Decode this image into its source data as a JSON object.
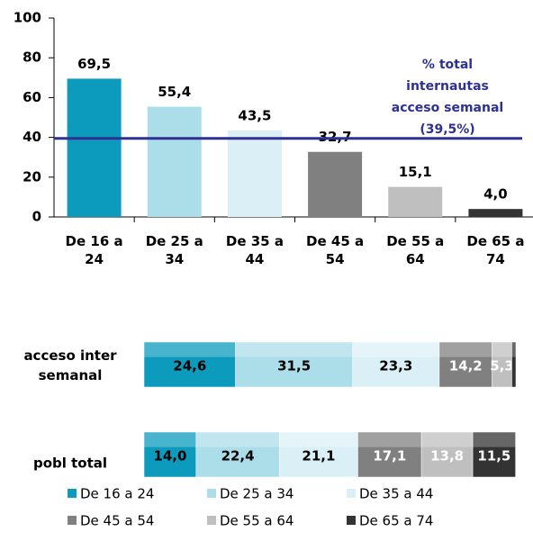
{
  "chart_data": [
    {
      "type": "bar",
      "categories": [
        "De 16 a 24",
        "De 25 a 34",
        "De 35 a 44",
        "De 45 a 54",
        "De 55 a 64",
        "De 65 a 74"
      ],
      "values": [
        69.5,
        55.4,
        43.5,
        32.7,
        15.1,
        4.0
      ],
      "value_labels": [
        "69,5",
        "55,4",
        "43,5",
        "32,7",
        "15,1",
        "4,0"
      ],
      "colors": [
        "#0d9bbd",
        "#acdeea",
        "#dbf0f6",
        "#808080",
        "#bfbfbf",
        "#333333"
      ],
      "ylim": [
        0,
        100
      ],
      "yticks": [
        0,
        20,
        40,
        60,
        80,
        100
      ],
      "reference_line": 39.5,
      "reference_color": "#2e3192",
      "annotation": [
        "% total",
        "internautas",
        "acceso semanal",
        "(39,5%)"
      ]
    },
    {
      "type": "stacked_barh",
      "categories": [
        "acceso inter semanal",
        "pobl total"
      ],
      "xlim": [
        0,
        100
      ],
      "series": [
        {
          "name": "De 16 a 24",
          "color": "#0d9bbd",
          "values": [
            24.6,
            14.0
          ],
          "value_labels": [
            "24,6",
            "14,0"
          ]
        },
        {
          "name": "De 25 a 34",
          "color": "#acdeea",
          "values": [
            31.5,
            22.4
          ],
          "value_labels": [
            "31,5",
            "22,4"
          ]
        },
        {
          "name": "De 35 a 44",
          "color": "#dbf0f6",
          "values": [
            23.3,
            21.1
          ],
          "value_labels": [
            "23,3",
            "21,1"
          ]
        },
        {
          "name": "De 45 a 54",
          "color": "#808080",
          "values": [
            14.2,
            17.1
          ],
          "value_labels": [
            "14,2",
            "17,1"
          ]
        },
        {
          "name": "De 55 a 64",
          "color": "#bfbfbf",
          "values": [
            5.3,
            13.8
          ],
          "value_labels": [
            "5,3",
            "13,8"
          ]
        },
        {
          "name": "De 65 a 74",
          "color": "#333333",
          "values": [
            1.1,
            11.5
          ],
          "value_labels": [
            null,
            "11,5"
          ]
        }
      ],
      "legend": "bottom"
    }
  ]
}
